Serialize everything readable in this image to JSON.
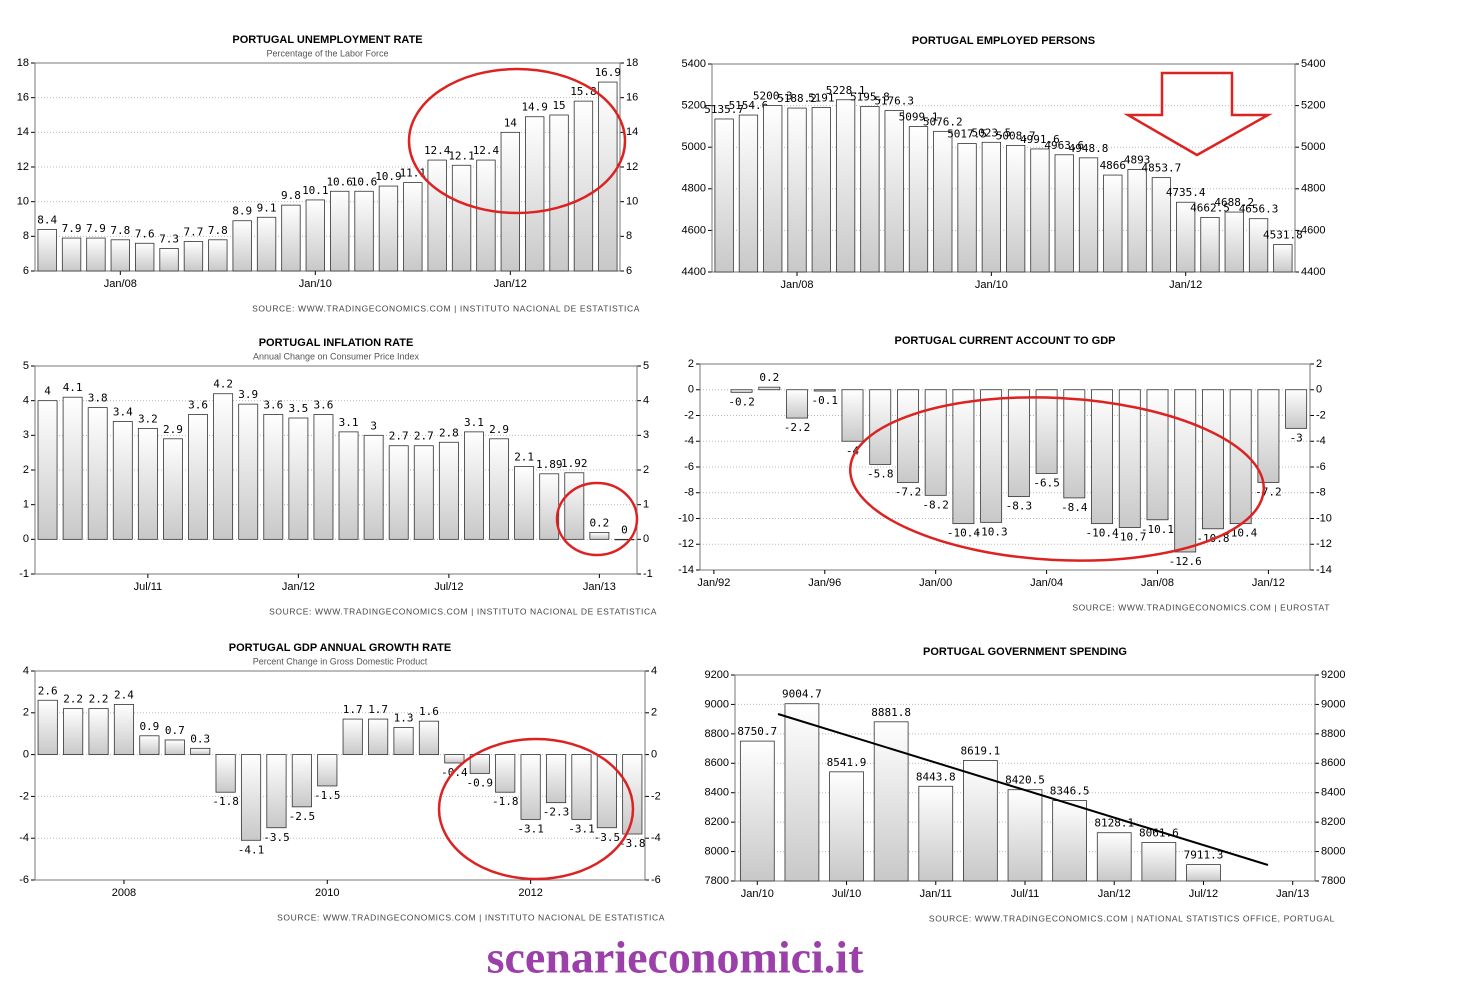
{
  "chart_data": [
    {
      "type": "bar",
      "title": "PORTUGAL UNEMPLOYMENT RATE",
      "subtitle": "Percentage of the Labor Force",
      "source": "SOURCE: WWW.TRADINGECONOMICS.COM | INSTITUTO NACIONAL DE ESTATISTICA",
      "categories": [
        null,
        null,
        null,
        "Jan/08",
        null,
        null,
        null,
        null,
        null,
        null,
        null,
        "Jan/10",
        null,
        null,
        null,
        null,
        null,
        null,
        null,
        "Jan/12",
        null,
        null,
        null,
        null
      ],
      "values": [
        8.4,
        7.9,
        7.9,
        7.8,
        7.6,
        7.3,
        7.7,
        7.8,
        8.9,
        9.1,
        9.8,
        10.1,
        10.6,
        10.6,
        10.9,
        11.1,
        12.4,
        12.1,
        12.4,
        14,
        14.9,
        15,
        15.8,
        16.9
      ],
      "color": "#c8c8c8",
      "ylim": [
        6,
        18
      ],
      "yticks": [
        6,
        8,
        10,
        12,
        14,
        16,
        18
      ],
      "grid": true
    },
    {
      "type": "bar",
      "title": "PORTUGAL EMPLOYED PERSONS",
      "categories": [
        null,
        null,
        null,
        "Jan/08",
        null,
        null,
        null,
        null,
        null,
        null,
        null,
        "Jan/10",
        null,
        null,
        null,
        null,
        null,
        null,
        null,
        "Jan/12",
        null,
        null,
        null,
        null
      ],
      "values": [
        5135.7,
        5154.6,
        5200.3,
        5188.2,
        5191,
        5228.1,
        5195.8,
        5176.3,
        5099.1,
        5076.2,
        5017.5,
        5023.5,
        5008.7,
        4991.6,
        4963.6,
        4948.8,
        4866,
        4893,
        4853.7,
        4735.4,
        4662.5,
        4688.2,
        4656.3,
        4531.8
      ],
      "color": "#c8c8c8",
      "ylim": [
        4400,
        5400
      ],
      "yticks": [
        4400,
        4600,
        4800,
        5000,
        5200,
        5400
      ],
      "grid": true
    },
    {
      "type": "bar",
      "title": "PORTUGAL INFLATION RATE",
      "subtitle": "Annual Change on Consumer Price Index",
      "source": "SOURCE: WWW.TRADINGECONOMICS.COM | INSTITUTO NACIONAL DE ESTATISTICA",
      "categories": [
        null,
        null,
        null,
        null,
        "Jul/11",
        null,
        null,
        null,
        null,
        null,
        "Jan/12",
        null,
        null,
        null,
        null,
        null,
        "Jul/12",
        null,
        null,
        null,
        null,
        null,
        "Jan/13",
        null
      ],
      "values": [
        4,
        4.1,
        3.8,
        3.4,
        3.2,
        2.9,
        3.6,
        4.2,
        3.9,
        3.6,
        3.5,
        3.6,
        3.1,
        3,
        2.7,
        2.7,
        2.8,
        3.1,
        2.9,
        2.1,
        1.89,
        1.92,
        0.2,
        0
      ],
      "color": "#c8c8c8",
      "ylim": [
        -1,
        5
      ],
      "yticks": [
        -1,
        0,
        1,
        2,
        3,
        4,
        5
      ],
      "grid": true
    },
    {
      "type": "bar",
      "title": "PORTUGAL CURRENT ACCOUNT TO GDP",
      "source": "SOURCE: WWW.TRADINGECONOMICS.COM | EUROSTAT",
      "categories": [
        "Jan/92",
        null,
        null,
        null,
        "Jan/96",
        null,
        null,
        null,
        "Jan/00",
        null,
        null,
        null,
        "Jan/04",
        null,
        null,
        null,
        "Jan/08",
        null,
        null,
        null,
        "Jan/12",
        null
      ],
      "values": [
        null,
        -0.2,
        0.2,
        -2.2,
        -0.1,
        -4,
        -5.8,
        -7.2,
        -8.2,
        -10.4,
        -10.3,
        -8.3,
        -6.5,
        -8.4,
        -10.4,
        -10.7,
        -10.1,
        -12.6,
        -10.8,
        -10.4,
        -7.2,
        -3
      ],
      "color": "#c8c8c8",
      "ylim": [
        -14,
        2
      ],
      "yticks": [
        -14,
        -12,
        -10,
        -8,
        -6,
        -4,
        -2,
        0,
        2
      ],
      "grid": true
    },
    {
      "type": "bar",
      "title": "PORTUGAL GDP ANNUAL GROWTH RATE",
      "subtitle": "Percent Change in Gross Domestic Product",
      "source": "SOURCE: WWW.TRADINGECONOMICS.COM | INSTITUTO NACIONAL DE ESTATISTICA",
      "categories": [
        null,
        null,
        null,
        "2008",
        null,
        null,
        null,
        null,
        null,
        null,
        null,
        "2010",
        null,
        null,
        null,
        null,
        null,
        null,
        null,
        "2012",
        null,
        null,
        null,
        null
      ],
      "values": [
        2.6,
        2.2,
        2.2,
        2.4,
        0.9,
        0.7,
        0.3,
        -1.8,
        -4.1,
        -3.5,
        -2.5,
        -1.5,
        1.7,
        1.7,
        1.3,
        1.6,
        -0.4,
        -0.9,
        -1.8,
        -3.1,
        -2.3,
        -3.1,
        -3.5,
        -3.8
      ],
      "color": "#c8c8c8",
      "ylim": [
        -6,
        4
      ],
      "yticks": [
        -6,
        -4,
        -2,
        0,
        2,
        4
      ],
      "grid": true
    },
    {
      "type": "bar",
      "title": "PORTUGAL GOVERNMENT SPENDING",
      "source": "SOURCE: WWW.TRADINGECONOMICS.COM | NATIONAL STATISTICS OFFICE, PORTUGAL",
      "categories": [
        "Jan/10",
        null,
        "Jul/10",
        null,
        "Jan/11",
        null,
        "Jul/11",
        null,
        "Jan/12",
        null,
        "Jul/12",
        null,
        "Jan/13"
      ],
      "values": [
        8750.7,
        9004.7,
        8541.9,
        8881.8,
        8443.8,
        8619.1,
        8420.5,
        8346.5,
        8128.1,
        8061.6,
        7911.3,
        null,
        null
      ],
      "color": "#c8c8c8",
      "ylim": [
        7800,
        9200
      ],
      "yticks": [
        7800,
        8000,
        8200,
        8400,
        8600,
        8800,
        9000,
        9200
      ],
      "grid": true
    }
  ],
  "watermark": "scenarieconomici.it"
}
